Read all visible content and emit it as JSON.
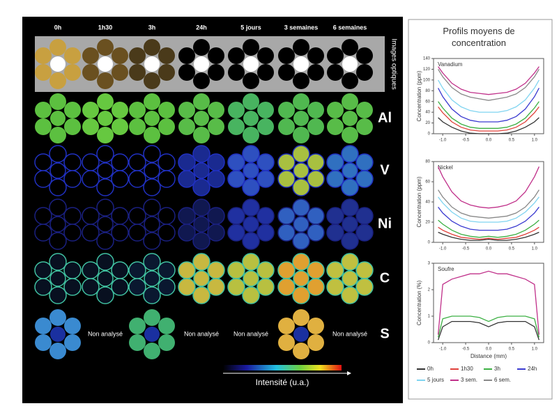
{
  "figure": {
    "columns": [
      "0h",
      "1h30",
      "3h",
      "24h",
      "5 jours",
      "3 semaines",
      "6 semaines"
    ],
    "optical_label": "Images optiques",
    "rows": [
      "Al",
      "V",
      "Ni",
      "C",
      "S"
    ],
    "not_analyzed": "Non analysé",
    "intensity_label": "Intensité (u.a.)",
    "profiles_title": "Profils moyens de concentration"
  },
  "chart_data": [
    {
      "type": "line",
      "title": "Vanadium",
      "ylabel": "Concentration (ppm)",
      "x": [
        -1.1,
        -1.0,
        -0.8,
        -0.6,
        -0.4,
        -0.2,
        0,
        0.2,
        0.4,
        0.6,
        0.8,
        1.0,
        1.1
      ],
      "xlim": [
        -1.2,
        1.2
      ],
      "xticks": [
        {
          "value": -1,
          "label": "-1.0"
        },
        -0.5,
        {
          "value": 0,
          "label": "0.0"
        },
        0.5,
        {
          "value": 1,
          "label": "1.0"
        }
      ],
      "ylim": [
        0,
        140
      ],
      "yticks": [
        0,
        20,
        40,
        60,
        80,
        100,
        120,
        140
      ],
      "series": [
        {
          "name": "0h",
          "color": "#333333",
          "values": [
            30,
            22,
            12,
            5,
            1,
            0,
            0,
            0,
            1,
            5,
            12,
            22,
            30
          ]
        },
        {
          "name": "1h30",
          "color": "#e0403a",
          "values": [
            50,
            39,
            22,
            12,
            7,
            5,
            5,
            5,
            7,
            12,
            22,
            39,
            50
          ]
        },
        {
          "name": "3h",
          "color": "#3cb043",
          "values": [
            60,
            48,
            29,
            18,
            12,
            10,
            10,
            10,
            12,
            18,
            29,
            48,
            60
          ]
        },
        {
          "name": "24h",
          "color": "#3a3ad0",
          "values": [
            85,
            69,
            46,
            32,
            25,
            22,
            22,
            22,
            25,
            32,
            46,
            69,
            85
          ]
        },
        {
          "name": "5 jours",
          "color": "#7fd4f0",
          "values": [
            100,
            85,
            63,
            50,
            43,
            40,
            40,
            40,
            43,
            50,
            63,
            85,
            100
          ]
        },
        {
          "name": "3 sem.",
          "color": "#c0308a",
          "values": [
            125,
            113,
            94,
            83,
            77,
            75,
            73,
            75,
            77,
            83,
            94,
            113,
            125
          ]
        },
        {
          "name": "6 sem.",
          "color": "#888888",
          "values": [
            120,
            106,
            86,
            74,
            68,
            65,
            62,
            65,
            68,
            74,
            86,
            106,
            120
          ]
        }
      ]
    },
    {
      "type": "line",
      "title": "Nickel",
      "ylabel": "Concentration (ppm)",
      "x": [
        -1.1,
        -1.0,
        -0.8,
        -0.6,
        -0.4,
        -0.2,
        0,
        0.2,
        0.4,
        0.6,
        0.8,
        1.0,
        1.1
      ],
      "xlim": [
        -1.2,
        1.2
      ],
      "xticks": [
        {
          "value": -1,
          "label": "-1.0"
        },
        -0.5,
        {
          "value": 0,
          "label": "0.0"
        },
        0.5,
        {
          "value": 1,
          "label": "1.0"
        }
      ],
      "ylim": [
        0,
        80
      ],
      "yticks": [
        0,
        20,
        40,
        60,
        80
      ],
      "series": [
        {
          "name": "0h",
          "color": "#333333",
          "values": [
            10,
            8,
            5,
            3,
            2,
            2,
            3,
            2,
            2,
            3,
            5,
            8,
            10
          ]
        },
        {
          "name": "1h30",
          "color": "#e0403a",
          "values": [
            15,
            12,
            8,
            5,
            4,
            3,
            4,
            3,
            4,
            5,
            8,
            12,
            15
          ]
        },
        {
          "name": "3h",
          "color": "#3cb043",
          "values": [
            22,
            18,
            12,
            8,
            6,
            5,
            6,
            5,
            6,
            8,
            12,
            18,
            22
          ]
        },
        {
          "name": "24h",
          "color": "#3a3ad0",
          "values": [
            35,
            29,
            21,
            16,
            13,
            12,
            12,
            12,
            13,
            16,
            21,
            29,
            35
          ]
        },
        {
          "name": "5 jours",
          "color": "#7fd4f0",
          "values": [
            45,
            39,
            30,
            24,
            21,
            20,
            20,
            20,
            21,
            24,
            30,
            39,
            45
          ]
        },
        {
          "name": "3 sem.",
          "color": "#c0308a",
          "values": [
            75,
            65,
            50,
            41,
            37,
            35,
            34,
            35,
            37,
            41,
            50,
            65,
            75
          ]
        },
        {
          "name": "6 sem.",
          "color": "#888888",
          "values": [
            52,
            45,
            35,
            29,
            26,
            25,
            24,
            25,
            26,
            29,
            35,
            45,
            52
          ]
        }
      ]
    },
    {
      "type": "line",
      "title": "Soufre",
      "ylabel": "Concentration (%)",
      "xlabel": "Distance (mm)",
      "x": [
        -1.1,
        -1.0,
        -0.8,
        -0.6,
        -0.4,
        -0.2,
        0,
        0.2,
        0.4,
        0.6,
        0.8,
        1.0,
        1.1
      ],
      "xlim": [
        -1.2,
        1.2
      ],
      "xticks": [
        {
          "value": -1,
          "label": "-1.0"
        },
        -0.5,
        {
          "value": 0,
          "label": "0.0"
        },
        0.5,
        {
          "value": 1,
          "label": "1.0"
        }
      ],
      "ylim": [
        0,
        3
      ],
      "yticks": [
        0,
        1,
        2,
        3
      ],
      "series": [
        {
          "name": "0h",
          "color": "#333333",
          "values": [
            0.1,
            0.6,
            0.8,
            0.8,
            0.8,
            0.75,
            0.6,
            0.75,
            0.8,
            0.8,
            0.8,
            0.6,
            0.1
          ]
        },
        {
          "name": "3h",
          "color": "#3cb043",
          "values": [
            0.2,
            0.9,
            1.0,
            1.0,
            1.0,
            0.95,
            0.8,
            0.95,
            1.0,
            1.0,
            1.0,
            0.9,
            0.2
          ]
        },
        {
          "name": "3 sem.",
          "color": "#c0308a",
          "values": [
            0.3,
            2.2,
            2.4,
            2.5,
            2.6,
            2.6,
            2.7,
            2.6,
            2.6,
            2.5,
            2.4,
            2.2,
            0.3
          ]
        }
      ]
    }
  ]
}
